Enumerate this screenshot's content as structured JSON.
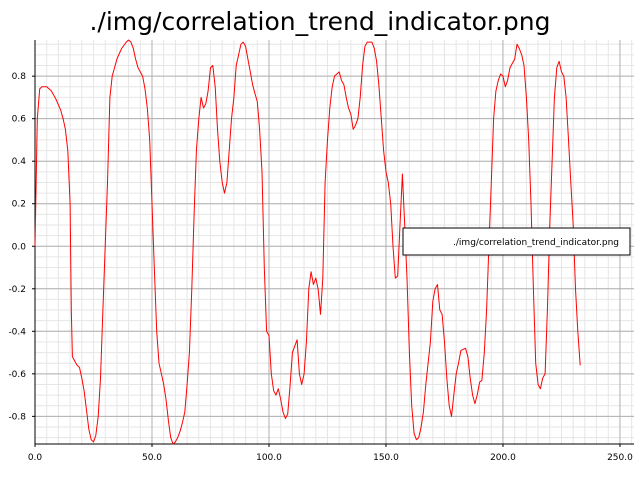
{
  "chart_data": {
    "type": "line",
    "title": "./img/correlation_trend_indicator.png",
    "xlabel": "",
    "ylabel": "",
    "xlim": [
      0,
      256
    ],
    "ylim": [
      -0.93,
      0.97
    ],
    "grid": true,
    "legend_position": "right",
    "x_ticks": [
      {
        "value": 0,
        "label": "0.0"
      },
      {
        "value": 50,
        "label": "50.0"
      },
      {
        "value": 100,
        "label": "100.0"
      },
      {
        "value": 150,
        "label": "150.0"
      },
      {
        "value": 200,
        "label": "200.0"
      },
      {
        "value": 250,
        "label": "250.0"
      }
    ],
    "y_ticks": [
      {
        "value": 0.8,
        "label": "0.8"
      },
      {
        "value": 0.6,
        "label": "0.6"
      },
      {
        "value": 0.4,
        "label": "0.4"
      },
      {
        "value": 0.2,
        "label": "0.2"
      },
      {
        "value": 0.0,
        "label": "0.0"
      },
      {
        "value": -0.2,
        "label": "-0.2"
      },
      {
        "value": -0.4,
        "label": "-0.4"
      },
      {
        "value": -0.6,
        "label": "-0.6"
      },
      {
        "value": -0.8,
        "label": "-0.8"
      }
    ],
    "series": [
      {
        "name": "./img/correlation_trend_indicator.png",
        "color": "#ff0000",
        "points": [
          [
            0,
            0.0
          ],
          [
            1,
            0.6
          ],
          [
            2,
            0.74
          ],
          [
            3,
            0.75
          ],
          [
            5,
            0.75
          ],
          [
            7,
            0.73
          ],
          [
            9,
            0.69
          ],
          [
            11,
            0.64
          ],
          [
            12,
            0.6
          ],
          [
            13,
            0.55
          ],
          [
            14,
            0.45
          ],
          [
            15,
            0.2
          ],
          [
            15.5,
            -0.3
          ],
          [
            16,
            -0.52
          ],
          [
            18,
            -0.56
          ],
          [
            19,
            -0.57
          ],
          [
            20,
            -0.62
          ],
          [
            21,
            -0.68
          ],
          [
            22,
            -0.77
          ],
          [
            23,
            -0.86
          ],
          [
            24,
            -0.91
          ],
          [
            25,
            -0.92
          ],
          [
            26,
            -0.89
          ],
          [
            27,
            -0.8
          ],
          [
            28,
            -0.62
          ],
          [
            29,
            -0.3
          ],
          [
            30,
            0.0
          ],
          [
            31,
            0.3
          ],
          [
            32,
            0.7
          ],
          [
            33,
            0.8
          ],
          [
            35,
            0.88
          ],
          [
            37,
            0.93
          ],
          [
            39,
            0.96
          ],
          [
            40,
            0.97
          ],
          [
            41,
            0.96
          ],
          [
            42,
            0.93
          ],
          [
            43,
            0.88
          ],
          [
            44,
            0.84
          ],
          [
            46,
            0.8
          ],
          [
            47,
            0.74
          ],
          [
            48,
            0.65
          ],
          [
            49,
            0.5
          ],
          [
            50,
            0.2
          ],
          [
            51,
            -0.1
          ],
          [
            52,
            -0.4
          ],
          [
            53,
            -0.55
          ],
          [
            54,
            -0.6
          ],
          [
            55,
            -0.65
          ],
          [
            56,
            -0.72
          ],
          [
            57,
            -0.82
          ],
          [
            58,
            -0.9
          ],
          [
            59,
            -0.93
          ],
          [
            60,
            -0.92
          ],
          [
            61,
            -0.9
          ],
          [
            62,
            -0.87
          ],
          [
            63,
            -0.83
          ],
          [
            64,
            -0.78
          ],
          [
            65,
            -0.65
          ],
          [
            66,
            -0.5
          ],
          [
            67,
            -0.2
          ],
          [
            68,
            0.15
          ],
          [
            69,
            0.45
          ],
          [
            70,
            0.6
          ],
          [
            71,
            0.7
          ],
          [
            72,
            0.65
          ],
          [
            73,
            0.67
          ],
          [
            74,
            0.73
          ],
          [
            75,
            0.84
          ],
          [
            76,
            0.85
          ],
          [
            77,
            0.75
          ],
          [
            78,
            0.55
          ],
          [
            79,
            0.4
          ],
          [
            80,
            0.3
          ],
          [
            81,
            0.25
          ],
          [
            82,
            0.3
          ],
          [
            83,
            0.45
          ],
          [
            84,
            0.6
          ],
          [
            85,
            0.7
          ],
          [
            86,
            0.85
          ],
          [
            87,
            0.9
          ],
          [
            88,
            0.95
          ],
          [
            89,
            0.96
          ],
          [
            90,
            0.94
          ],
          [
            91,
            0.88
          ],
          [
            92,
            0.82
          ],
          [
            93,
            0.76
          ],
          [
            94,
            0.72
          ],
          [
            95,
            0.68
          ],
          [
            96,
            0.55
          ],
          [
            97,
            0.35
          ],
          [
            98,
            -0.1
          ],
          [
            99,
            -0.4
          ],
          [
            100,
            -0.42
          ],
          [
            101,
            -0.6
          ],
          [
            102,
            -0.68
          ],
          [
            103,
            -0.7
          ],
          [
            104,
            -0.67
          ],
          [
            105,
            -0.72
          ],
          [
            106,
            -0.78
          ],
          [
            107,
            -0.81
          ],
          [
            108,
            -0.79
          ],
          [
            109,
            -0.66
          ],
          [
            110,
            -0.5
          ],
          [
            111,
            -0.47
          ],
          [
            112,
            -0.44
          ],
          [
            113,
            -0.6
          ],
          [
            114,
            -0.65
          ],
          [
            115,
            -0.6
          ],
          [
            116,
            -0.45
          ],
          [
            117,
            -0.2
          ],
          [
            118,
            -0.12
          ],
          [
            119,
            -0.18
          ],
          [
            120,
            -0.15
          ],
          [
            121,
            -0.2
          ],
          [
            122,
            -0.32
          ],
          [
            123,
            -0.15
          ],
          [
            124,
            0.3
          ],
          [
            125,
            0.5
          ],
          [
            126,
            0.65
          ],
          [
            127,
            0.75
          ],
          [
            128,
            0.8
          ],
          [
            130,
            0.82
          ],
          [
            131,
            0.78
          ],
          [
            132,
            0.76
          ],
          [
            133,
            0.7
          ],
          [
            134,
            0.65
          ],
          [
            135,
            0.62
          ],
          [
            136,
            0.55
          ],
          [
            137,
            0.57
          ],
          [
            138,
            0.6
          ],
          [
            139,
            0.7
          ],
          [
            140,
            0.85
          ],
          [
            141,
            0.94
          ],
          [
            142,
            0.96
          ],
          [
            144,
            0.96
          ],
          [
            145,
            0.93
          ],
          [
            146,
            0.87
          ],
          [
            147,
            0.75
          ],
          [
            148,
            0.6
          ],
          [
            149,
            0.45
          ],
          [
            150,
            0.35
          ],
          [
            151,
            0.3
          ],
          [
            152,
            0.2
          ],
          [
            153,
            0.0
          ],
          [
            154,
            -0.15
          ],
          [
            155,
            -0.14
          ],
          [
            156,
            0.1
          ],
          [
            157,
            0.34
          ],
          [
            158,
            0.1
          ],
          [
            159,
            -0.15
          ],
          [
            160,
            -0.5
          ],
          [
            161,
            -0.75
          ],
          [
            162,
            -0.88
          ],
          [
            163,
            -0.91
          ],
          [
            164,
            -0.9
          ],
          [
            165,
            -0.85
          ],
          [
            166,
            -0.78
          ],
          [
            167,
            -0.65
          ],
          [
            168,
            -0.55
          ],
          [
            169,
            -0.45
          ],
          [
            170,
            -0.26
          ],
          [
            171,
            -0.2
          ],
          [
            172,
            -0.18
          ],
          [
            173,
            -0.3
          ],
          [
            174,
            -0.32
          ],
          [
            175,
            -0.45
          ],
          [
            176,
            -0.62
          ],
          [
            177,
            -0.75
          ],
          [
            178,
            -0.8
          ],
          [
            179,
            -0.7
          ],
          [
            180,
            -0.6
          ],
          [
            181,
            -0.55
          ],
          [
            182,
            -0.49
          ],
          [
            184,
            -0.48
          ],
          [
            185,
            -0.52
          ],
          [
            186,
            -0.62
          ],
          [
            187,
            -0.7
          ],
          [
            188,
            -0.74
          ],
          [
            189,
            -0.7
          ],
          [
            190,
            -0.64
          ],
          [
            191,
            -0.63
          ],
          [
            192,
            -0.5
          ],
          [
            193,
            -0.3
          ],
          [
            194,
            0.0
          ],
          [
            195,
            0.3
          ],
          [
            196,
            0.6
          ],
          [
            197,
            0.73
          ],
          [
            198,
            0.78
          ],
          [
            199,
            0.81
          ],
          [
            200,
            0.8
          ],
          [
            201,
            0.75
          ],
          [
            202,
            0.78
          ],
          [
            203,
            0.84
          ],
          [
            204,
            0.86
          ],
          [
            205,
            0.88
          ],
          [
            206,
            0.95
          ],
          [
            207,
            0.93
          ],
          [
            208,
            0.9
          ],
          [
            209,
            0.85
          ],
          [
            210,
            0.7
          ],
          [
            211,
            0.5
          ],
          [
            212,
            0.2
          ],
          [
            213,
            -0.2
          ],
          [
            214,
            -0.55
          ],
          [
            215,
            -0.65
          ],
          [
            216,
            -0.67
          ],
          [
            217,
            -0.62
          ],
          [
            218,
            -0.6
          ],
          [
            219,
            -0.3
          ],
          [
            220,
            0.1
          ],
          [
            221,
            0.4
          ],
          [
            222,
            0.7
          ],
          [
            223,
            0.84
          ],
          [
            224,
            0.87
          ],
          [
            225,
            0.82
          ],
          [
            226,
            0.8
          ],
          [
            227,
            0.7
          ],
          [
            228,
            0.5
          ],
          [
            229,
            0.3
          ],
          [
            230,
            0.1
          ],
          [
            231,
            -0.2
          ],
          [
            232,
            -0.4
          ],
          [
            233,
            -0.56
          ]
        ]
      }
    ]
  }
}
